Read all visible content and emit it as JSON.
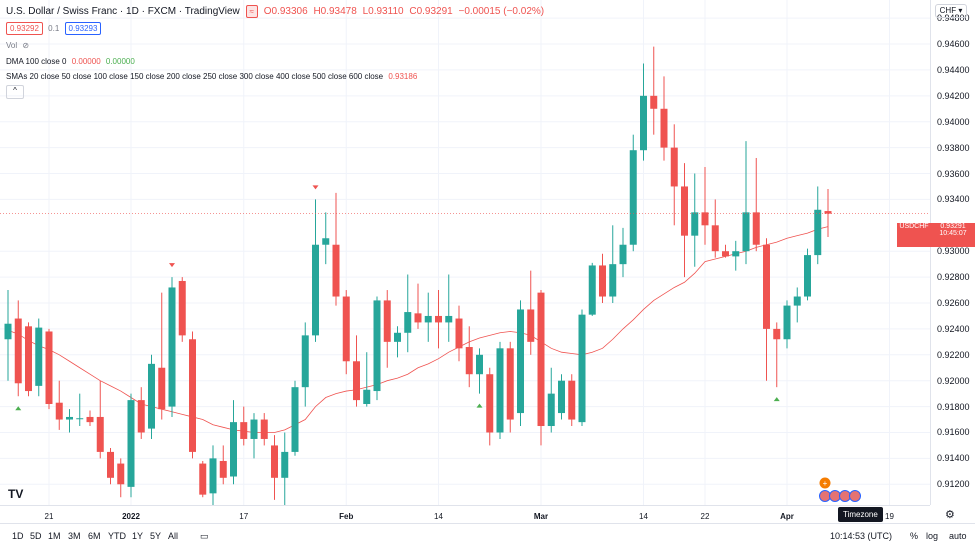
{
  "header": {
    "title": "U.S. Dollar / Swiss Franc · 1D · FXCM · TradingView",
    "ohlc": {
      "o": "O0.93306",
      "h": "H0.93478",
      "l": "L0.93110",
      "c": "C0.93291",
      "chg": "−0.00015 (−0.02%)"
    },
    "bid": "0.93292",
    "spread": "0.1",
    "ask": "0.93293"
  },
  "indicators": {
    "vol_label": "Vol",
    "dma_label": "DMA 100 close 0",
    "dma_v1": "0.00000",
    "dma_v2": "0.00000",
    "smas_label": "SMAs 20 close 50 close 100 close 150 close 200 close 250 close 300 close 400 close 500 close 600 close",
    "smas_value": "0.93186"
  },
  "currency": "CHF",
  "price_axis": [
    "0.94800",
    "0.94600",
    "0.94400",
    "0.94200",
    "0.94000",
    "0.93800",
    "0.93600",
    "0.93400",
    "0.93000",
    "0.92800",
    "0.92600",
    "0.92400",
    "0.92200",
    "0.92000",
    "0.91800",
    "0.91600",
    "0.91400",
    "0.91200"
  ],
  "price_tag": {
    "symbol": "USDCHF",
    "price": "0.93291",
    "countdown": "10:45:07"
  },
  "time_axis": [
    "21",
    "2022",
    "17",
    "Feb",
    "14",
    "Mar",
    "14",
    "22",
    "Apr",
    "19"
  ],
  "timeframes": [
    "1D",
    "5D",
    "1M",
    "3M",
    "6M",
    "YTD",
    "1Y",
    "5Y",
    "All"
  ],
  "bottom_right": {
    "clock": "10:14:53 (UTC)",
    "percent": "%",
    "log": "log",
    "auto": "auto"
  },
  "tooltip": "Timezone",
  "logo": "TV",
  "colors": {
    "up": "#26a69a",
    "down": "#ef5350",
    "sma": "#ef5350"
  },
  "chart_data": {
    "type": "candlestick",
    "ylim": [
      0.9104,
      0.9494
    ],
    "candles": [
      {
        "o": 0.9232,
        "h": 0.927,
        "l": 0.92,
        "c": 0.9244
      },
      {
        "o": 0.9248,
        "h": 0.9262,
        "l": 0.9188,
        "c": 0.9198
      },
      {
        "o": 0.9242,
        "h": 0.9245,
        "l": 0.9188,
        "c": 0.9192
      },
      {
        "o": 0.9196,
        "h": 0.9248,
        "l": 0.9188,
        "c": 0.9241
      },
      {
        "o": 0.9238,
        "h": 0.924,
        "l": 0.9178,
        "c": 0.9182
      },
      {
        "o": 0.9183,
        "h": 0.92,
        "l": 0.9162,
        "c": 0.917
      },
      {
        "o": 0.917,
        "h": 0.9178,
        "l": 0.916,
        "c": 0.9172
      },
      {
        "o": 0.9171,
        "h": 0.919,
        "l": 0.9165,
        "c": 0.9171
      },
      {
        "o": 0.9172,
        "h": 0.9177,
        "l": 0.9165,
        "c": 0.9168
      },
      {
        "o": 0.9172,
        "h": 0.92,
        "l": 0.914,
        "c": 0.9145
      },
      {
        "o": 0.9145,
        "h": 0.9148,
        "l": 0.912,
        "c": 0.9125
      },
      {
        "o": 0.9136,
        "h": 0.914,
        "l": 0.911,
        "c": 0.912
      },
      {
        "o": 0.9118,
        "h": 0.919,
        "l": 0.911,
        "c": 0.9185
      },
      {
        "o": 0.9185,
        "h": 0.9195,
        "l": 0.9155,
        "c": 0.916
      },
      {
        "o": 0.9163,
        "h": 0.922,
        "l": 0.9155,
        "c": 0.9213
      },
      {
        "o": 0.921,
        "h": 0.9268,
        "l": 0.917,
        "c": 0.9178
      },
      {
        "o": 0.918,
        "h": 0.928,
        "l": 0.9172,
        "c": 0.9272
      },
      {
        "o": 0.9277,
        "h": 0.928,
        "l": 0.923,
        "c": 0.9235
      },
      {
        "o": 0.9232,
        "h": 0.9238,
        "l": 0.914,
        "c": 0.9145
      },
      {
        "o": 0.9136,
        "h": 0.9138,
        "l": 0.911,
        "c": 0.9112
      },
      {
        "o": 0.9113,
        "h": 0.915,
        "l": 0.91,
        "c": 0.914
      },
      {
        "o": 0.9138,
        "h": 0.915,
        "l": 0.912,
        "c": 0.9125
      },
      {
        "o": 0.9126,
        "h": 0.9185,
        "l": 0.912,
        "c": 0.9168
      },
      {
        "o": 0.9168,
        "h": 0.918,
        "l": 0.915,
        "c": 0.9155
      },
      {
        "o": 0.9155,
        "h": 0.9175,
        "l": 0.914,
        "c": 0.917
      },
      {
        "o": 0.917,
        "h": 0.9175,
        "l": 0.915,
        "c": 0.9155
      },
      {
        "o": 0.915,
        "h": 0.9158,
        "l": 0.9108,
        "c": 0.9125
      },
      {
        "o": 0.9125,
        "h": 0.916,
        "l": 0.908,
        "c": 0.9145
      },
      {
        "o": 0.9145,
        "h": 0.92,
        "l": 0.9142,
        "c": 0.9195
      },
      {
        "o": 0.9195,
        "h": 0.9245,
        "l": 0.918,
        "c": 0.9235
      },
      {
        "o": 0.9235,
        "h": 0.934,
        "l": 0.923,
        "c": 0.9305
      },
      {
        "o": 0.9305,
        "h": 0.933,
        "l": 0.929,
        "c": 0.931
      },
      {
        "o": 0.9305,
        "h": 0.9345,
        "l": 0.9258,
        "c": 0.9265
      },
      {
        "o": 0.9265,
        "h": 0.927,
        "l": 0.9205,
        "c": 0.9215
      },
      {
        "o": 0.9215,
        "h": 0.9235,
        "l": 0.918,
        "c": 0.9185
      },
      {
        "o": 0.9182,
        "h": 0.9222,
        "l": 0.918,
        "c": 0.9193
      },
      {
        "o": 0.9192,
        "h": 0.9265,
        "l": 0.9185,
        "c": 0.9262
      },
      {
        "o": 0.9262,
        "h": 0.927,
        "l": 0.921,
        "c": 0.923
      },
      {
        "o": 0.923,
        "h": 0.9242,
        "l": 0.9218,
        "c": 0.9237
      },
      {
        "o": 0.9237,
        "h": 0.9282,
        "l": 0.9222,
        "c": 0.9253
      },
      {
        "o": 0.9252,
        "h": 0.9275,
        "l": 0.924,
        "c": 0.9245
      },
      {
        "o": 0.9245,
        "h": 0.9268,
        "l": 0.923,
        "c": 0.925
      },
      {
        "o": 0.925,
        "h": 0.927,
        "l": 0.9225,
        "c": 0.9245
      },
      {
        "o": 0.9245,
        "h": 0.9282,
        "l": 0.923,
        "c": 0.925
      },
      {
        "o": 0.9248,
        "h": 0.9258,
        "l": 0.9215,
        "c": 0.9225
      },
      {
        "o": 0.9226,
        "h": 0.9242,
        "l": 0.9195,
        "c": 0.9205
      },
      {
        "o": 0.9205,
        "h": 0.9225,
        "l": 0.919,
        "c": 0.922
      },
      {
        "o": 0.9205,
        "h": 0.921,
        "l": 0.915,
        "c": 0.916
      },
      {
        "o": 0.916,
        "h": 0.923,
        "l": 0.9155,
        "c": 0.9225
      },
      {
        "o": 0.9225,
        "h": 0.923,
        "l": 0.916,
        "c": 0.917
      },
      {
        "o": 0.9175,
        "h": 0.9262,
        "l": 0.9165,
        "c": 0.9255
      },
      {
        "o": 0.9255,
        "h": 0.9285,
        "l": 0.922,
        "c": 0.923
      },
      {
        "o": 0.9268,
        "h": 0.927,
        "l": 0.915,
        "c": 0.9165
      },
      {
        "o": 0.9165,
        "h": 0.921,
        "l": 0.916,
        "c": 0.919
      },
      {
        "o": 0.9175,
        "h": 0.9205,
        "l": 0.917,
        "c": 0.92
      },
      {
        "o": 0.92,
        "h": 0.9205,
        "l": 0.9165,
        "c": 0.917
      },
      {
        "o": 0.9168,
        "h": 0.9255,
        "l": 0.9165,
        "c": 0.9251
      },
      {
        "o": 0.9251,
        "h": 0.9291,
        "l": 0.925,
        "c": 0.9289
      },
      {
        "o": 0.9289,
        "h": 0.9298,
        "l": 0.926,
        "c": 0.9265
      },
      {
        "o": 0.9265,
        "h": 0.932,
        "l": 0.926,
        "c": 0.929
      },
      {
        "o": 0.929,
        "h": 0.9318,
        "l": 0.928,
        "c": 0.9305
      },
      {
        "o": 0.9305,
        "h": 0.939,
        "l": 0.93,
        "c": 0.9378
      },
      {
        "o": 0.9378,
        "h": 0.9445,
        "l": 0.937,
        "c": 0.942
      },
      {
        "o": 0.942,
        "h": 0.9458,
        "l": 0.939,
        "c": 0.941
      },
      {
        "o": 0.941,
        "h": 0.9435,
        "l": 0.937,
        "c": 0.938
      },
      {
        "o": 0.938,
        "h": 0.9398,
        "l": 0.932,
        "c": 0.935
      },
      {
        "o": 0.935,
        "h": 0.9368,
        "l": 0.928,
        "c": 0.9312
      },
      {
        "o": 0.9312,
        "h": 0.936,
        "l": 0.9288,
        "c": 0.933
      },
      {
        "o": 0.933,
        "h": 0.9365,
        "l": 0.9305,
        "c": 0.932
      },
      {
        "o": 0.932,
        "h": 0.934,
        "l": 0.9295,
        "c": 0.93
      },
      {
        "o": 0.93,
        "h": 0.9305,
        "l": 0.9295,
        "c": 0.9296
      },
      {
        "o": 0.9296,
        "h": 0.9308,
        "l": 0.9285,
        "c": 0.93
      },
      {
        "o": 0.93,
        "h": 0.9385,
        "l": 0.929,
        "c": 0.933
      },
      {
        "o": 0.933,
        "h": 0.9372,
        "l": 0.93,
        "c": 0.9305
      },
      {
        "o": 0.9305,
        "h": 0.931,
        "l": 0.92,
        "c": 0.924
      },
      {
        "o": 0.924,
        "h": 0.9245,
        "l": 0.9195,
        "c": 0.9232
      },
      {
        "o": 0.9232,
        "h": 0.9262,
        "l": 0.9225,
        "c": 0.9258
      },
      {
        "o": 0.9258,
        "h": 0.9272,
        "l": 0.9245,
        "c": 0.9265
      },
      {
        "o": 0.9265,
        "h": 0.9302,
        "l": 0.9262,
        "c": 0.9297
      },
      {
        "o": 0.9297,
        "h": 0.935,
        "l": 0.929,
        "c": 0.9332
      },
      {
        "o": 0.9331,
        "h": 0.9348,
        "l": 0.9311,
        "c": 0.9329
      }
    ],
    "sma_line": [
      0.9239,
      0.9236,
      0.9231,
      0.9227,
      0.9224,
      0.922,
      0.9215,
      0.921,
      0.9205,
      0.92,
      0.9196,
      0.9192,
      0.9187,
      0.9182,
      0.918,
      0.9178,
      0.9176,
      0.9174,
      0.9172,
      0.917,
      0.9166,
      0.9164,
      0.9162,
      0.9161,
      0.916,
      0.916,
      0.916,
      0.9162,
      0.9166,
      0.917,
      0.918,
      0.9187,
      0.919,
      0.9192,
      0.9193,
      0.9195,
      0.9197,
      0.92,
      0.9202,
      0.9205,
      0.921,
      0.9213,
      0.9217,
      0.9222,
      0.9226,
      0.923,
      0.9233,
      0.9235,
      0.9237,
      0.9238,
      0.9237,
      0.9235,
      0.923,
      0.9225,
      0.9222,
      0.9221,
      0.922,
      0.9222,
      0.9225,
      0.9232,
      0.924,
      0.9247,
      0.9255,
      0.9262,
      0.9267,
      0.9272,
      0.9276,
      0.9283,
      0.9292,
      0.9294,
      0.9296,
      0.9298,
      0.93,
      0.9303,
      0.9305,
      0.9307,
      0.931,
      0.9312,
      0.9314,
      0.9317,
      0.9319
    ]
  }
}
